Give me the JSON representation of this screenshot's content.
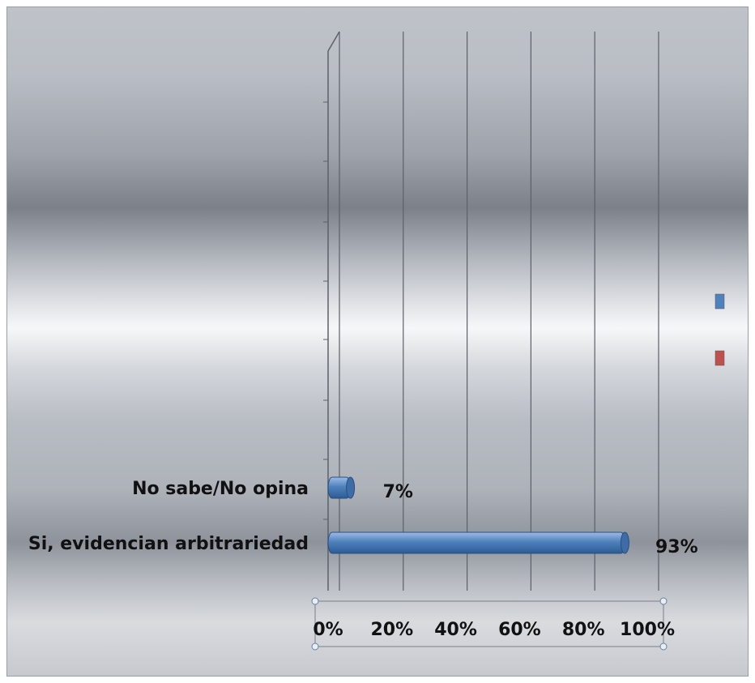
{
  "chart_data": {
    "type": "bar",
    "orientation": "horizontal",
    "categories": [
      "No sabe/No opina",
      "Si, evidencian arbitrariedad"
    ],
    "values": [
      7,
      93
    ],
    "value_labels": [
      "7%",
      "93%"
    ],
    "xlim": [
      0,
      100
    ],
    "x_ticks": [
      "0%",
      "20%",
      "40%",
      "60%",
      "80%",
      "100%"
    ],
    "grid": true,
    "legend": "right",
    "legend_colors": [
      "#4f81bd",
      "#c0504d"
    ],
    "bar_color": "#4f81bd"
  }
}
